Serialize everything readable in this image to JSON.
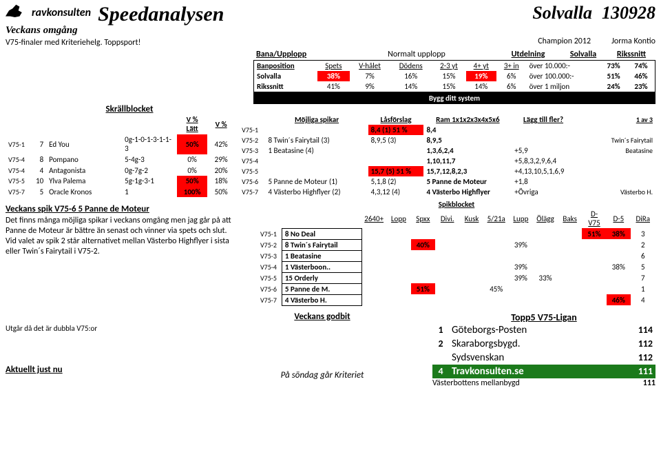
{
  "header": {
    "brand": "ravkonsulten",
    "title": "Speedanalysen",
    "track": "Solvalla",
    "date": "130928",
    "sub1": "Veckans omgång",
    "sub2": "V75-finaler med Kriteriehelg. Toppsport!",
    "champion_lbl": "Champion 2012",
    "champion_name": "Jorma Kontio"
  },
  "bana": {
    "lbl": "Bana/Upplopp",
    "val": "Normalt upplopp",
    "utd": "Utdelning",
    "sol": "Solvalla",
    "rik": "Rikssnitt"
  },
  "banpos": {
    "lbl": "Banposition",
    "cols": [
      "Spets",
      "V-hålet",
      "Dödens",
      "2-3 yt",
      "4+ yt",
      "3+ in"
    ],
    "over10k": "över 10.000:-",
    "over100k": "över 100.000:-",
    "over1m": "över 1 miljon",
    "rows": [
      {
        "name": "Solvalla",
        "vals": [
          "38%",
          "7%",
          "16%",
          "15%",
          "19%",
          "6%"
        ],
        "red": [
          0,
          4
        ],
        "big1": "73%",
        "big2": "74%"
      },
      {
        "name": "Rikssnitt",
        "vals": [
          "41%",
          "9%",
          "14%",
          "15%",
          "14%",
          "6%"
        ],
        "red": [],
        "big1": "51%",
        "big2": "46%"
      }
    ],
    "mrow": {
      "big1": "24%",
      "big2": "23%"
    }
  },
  "bds": "Bygg ditt system",
  "skrall": {
    "title": "Skrällblocket",
    "c5": "V % Lätt",
    "c6": "V %",
    "rows": [
      {
        "r": "V75-1",
        "n": "7",
        "name": "Ed You",
        "code": "0g-1-0-1-3-1-1-3",
        "p1": "50%",
        "p2": "42%",
        "red": true
      },
      {
        "r": "V75-4",
        "n": "8",
        "name": "Pompano",
        "code": "5-4g-3",
        "p1": "0%",
        "p2": "29%",
        "red": false
      },
      {
        "r": "V75-4",
        "n": "4",
        "name": "Antagonista",
        "code": "0g-7g-2",
        "p1": "0%",
        "p2": "20%",
        "red": false
      },
      {
        "r": "V75-5",
        "n": "10",
        "name": "Ylva Palema",
        "code": "5g-1g-3-1",
        "p1": "50%",
        "p2": "18%",
        "red": true
      },
      {
        "r": "V75-7",
        "n": "5",
        "name": "Oracle Kronos",
        "code": "1",
        "p1": "100%",
        "p2": "50%",
        "red": true
      }
    ]
  },
  "moj": {
    "head": [
      "Möjliga spikar",
      "Låsförslag",
      "Ram 1x1x2x3x4x5x6",
      "Lägg till fler?",
      "1 av 3"
    ],
    "rows": [
      {
        "r": "V75-1",
        "a": "",
        "b": "8,4 (1) 51 %",
        "c": "8,4",
        "d": "",
        "e": "",
        "red_b": true
      },
      {
        "r": "V75-2",
        "a": "8 Twin´s Fairytail (3)",
        "b": "8,9,5 (3)",
        "c": "8,9,5",
        "d": "",
        "e": "Twin´s Fairytail"
      },
      {
        "r": "V75-3",
        "a": "1 Beatasine (4)",
        "b": "",
        "c": "1,3,6,2,4",
        "d": "+5,9",
        "e": "Beatasine"
      },
      {
        "r": "V75-4",
        "a": "",
        "b": "",
        "c": "1,10,11,7",
        "d": "+5,8,3,2,9,6,4",
        "e": ""
      },
      {
        "r": "V75-5",
        "a": "",
        "b": "15,7 (5) 51 %",
        "c": "15,7,12,8,2,3",
        "d": "+4,13,10,5,1,6,9",
        "e": "",
        "red_b": true
      },
      {
        "r": "V75-6",
        "a": "5 Panne de Moteur (1)",
        "b": "5,1,8 (2)",
        "c": "5 Panne de Moteur",
        "d": "+1,8",
        "e": ""
      },
      {
        "r": "V75-7",
        "a": "4 Västerbo Highflyer (2)",
        "b": "4,3,12 (4)",
        "c": "4 Västerbo Highflyer",
        "d": "+Övriga",
        "e": "Västerbo H."
      }
    ]
  },
  "spik_title": "Veckans spik V75-6 5 Panne de Moteur",
  "para": "Det finns många möjliga spikar i veckans omgång men jag går på att Panne de Moteur är bättre än senast och vinner via spets och slut. Vid valet av spik 2 står alternativet mellan Västerbo Highflyer i sista eller Twin´s Fairytail i V75-2.",
  "spikblock": {
    "title": "Spikblocket",
    "head": [
      "2640+",
      "Lopp",
      "Spxx",
      "Divi.",
      "Kusk",
      "5/21a",
      "Lupp",
      "Ölägg",
      "Baks",
      "D-V75",
      "D-5",
      "DiRa"
    ],
    "rows": [
      {
        "r": "V75-1",
        "name": "8 No Deal",
        "cells": {
          "d75": "51%",
          "d5": "38%",
          "dira": "3",
          "red": [
            "d75",
            "d5"
          ]
        }
      },
      {
        "r": "V75-2",
        "name": "8 Twin´s Fairytail",
        "cells": {
          "spxx": "40%",
          "lupp": "39%",
          "dira": "2",
          "red": [
            "spxx"
          ]
        }
      },
      {
        "r": "V75-3",
        "name": "1 Beatasine",
        "cells": {
          "dira": "6"
        }
      },
      {
        "r": "V75-4",
        "name": "1 Västerboon..",
        "cells": {
          "lupp": "39%",
          "d5": "38%",
          "dira": "5",
          "red": []
        }
      },
      {
        "r": "V75-5",
        "name": "15 Orderly",
        "cells": {
          "lupp": "39%",
          "olag": "33%",
          "dira": "7"
        }
      },
      {
        "r": "V75-6",
        "name": "5 Panne de M.",
        "cells": {
          "spxx": "51%",
          "s21": "45%",
          "dira": "1",
          "red": [
            "spxx"
          ]
        }
      },
      {
        "r": "V75-7",
        "name": "4 Västerbo H.",
        "cells": {
          "d5": "46%",
          "dira": "4",
          "red": [
            "d5"
          ]
        }
      }
    ]
  },
  "utgar": "Utgår då det är dubbla V75:or",
  "godbit": "Veckans godbit",
  "topp5": {
    "title": "Topp5 V75-Ligan",
    "rows": [
      {
        "n": "1",
        "name": "Göteborgs-Posten",
        "pts": "114"
      },
      {
        "n": "2",
        "name": "Skaraborgsbygd.",
        "pts": "112"
      },
      {
        "n": "",
        "name": "Sydsvenskan",
        "pts": "112"
      },
      {
        "n": "4",
        "name": "Travkonsulten.se",
        "pts": "111",
        "green": true
      }
    ],
    "foot": {
      "name": "Västerbottens mellanbygd",
      "pts": "111"
    }
  },
  "aktuellt": "Aktuellt just nu",
  "kriteriet": "På söndag går Kriteriet"
}
